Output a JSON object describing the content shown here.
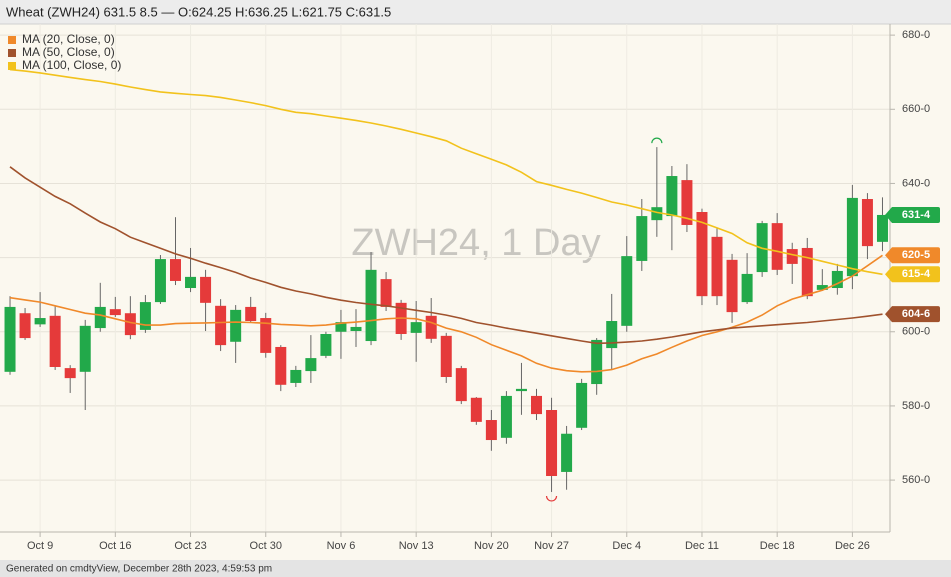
{
  "chart_data": {
    "type": "candlestick",
    "title": "Wheat (ZWH24) 631.5 8.5 — O:624.25 H:636.25 L:621.75 C:631.5",
    "watermark": "ZWH24, 1 Day",
    "footer": "Generated on cmdtyView, December 28th 2023, 4:59:53 pm",
    "categories": [
      null,
      null,
      "Oct 9",
      null,
      null,
      null,
      null,
      "Oct 16",
      null,
      null,
      null,
      null,
      "Oct 23",
      null,
      null,
      null,
      null,
      "Oct 30",
      null,
      null,
      null,
      null,
      "Nov 6",
      null,
      null,
      null,
      null,
      "Nov 13",
      null,
      null,
      null,
      null,
      "Nov 20",
      null,
      null,
      null,
      "Nov 27",
      null,
      null,
      null,
      null,
      "Dec 4",
      null,
      null,
      null,
      null,
      "Dec 11",
      null,
      null,
      null,
      null,
      "Dec 18",
      null,
      null,
      null,
      null,
      "Dec 26",
      null,
      null
    ],
    "open": [
      589.2,
      605,
      602,
      604.3,
      590.2,
      589.2,
      601,
      606.1,
      605,
      600.5,
      608,
      619.6,
      611.8,
      614.8,
      607,
      597.3,
      606.7,
      603.7,
      595.9,
      586.2,
      589.4,
      593.5,
      600,
      600.2,
      597.5,
      614.2,
      607.8,
      599.7,
      604.3,
      598.9,
      590.2,
      582.2,
      576.2,
      571.4,
      584,
      582.7,
      578.9,
      562.2,
      574.1,
      585.9,
      595.6,
      601.6,
      619.1,
      630.1,
      631.2,
      640.9,
      632.3,
      625.6,
      619.4,
      608,
      616.1,
      629.3,
      622.3,
      622.6,
      611.3,
      611.8,
      615,
      635.8,
      624.25
    ],
    "high": [
      609.6,
      606.4,
      610.7,
      607,
      591,
      603.2,
      613.2,
      609.4,
      609.6,
      609.9,
      620.7,
      630.9,
      622.6,
      616.7,
      608.8,
      607.2,
      609.4,
      605.1,
      596.4,
      590.8,
      599.1,
      600,
      605.9,
      606.1,
      621.5,
      616.1,
      608.6,
      608.3,
      609.1,
      599.7,
      590.8,
      582.4,
      578.9,
      584,
      591.6,
      584.6,
      582.2,
      574.6,
      587.3,
      598.3,
      610.2,
      625.8,
      635.8,
      649.8,
      644.7,
      645.2,
      633.2,
      628,
      621,
      621.2,
      629.9,
      632,
      624,
      625.3,
      616.9,
      618.3,
      639.6,
      637.4,
      636.25
    ],
    "low": [
      588.4,
      597.8,
      601.3,
      589.7,
      583.5,
      578.9,
      600,
      604,
      598,
      599.7,
      607.5,
      612.6,
      610.7,
      600.2,
      594.8,
      591.6,
      602.4,
      593,
      584,
      585.1,
      586.2,
      592.9,
      592.7,
      595.9,
      596.4,
      605.6,
      597.8,
      591.9,
      597,
      586.2,
      580.5,
      574.9,
      567.9,
      569.8,
      577.6,
      576.2,
      556.8,
      557.4,
      573.5,
      583,
      589.7,
      600,
      616.4,
      625.6,
      622,
      626.9,
      607.2,
      607.2,
      602.4,
      607.5,
      614.8,
      615.3,
      612.9,
      608.8,
      611,
      610,
      611.5,
      619.6,
      621.75
    ],
    "close": [
      606.7,
      598.3,
      603.7,
      590.5,
      587.5,
      601.6,
      606.7,
      604.5,
      599.1,
      608,
      619.6,
      613.7,
      614.8,
      607.8,
      596.4,
      605.9,
      602.9,
      594.3,
      585.7,
      589.7,
      592.9,
      599.4,
      602.6,
      601.3,
      616.7,
      606.7,
      599.4,
      602.6,
      598.1,
      587.8,
      581.3,
      575.7,
      570.8,
      582.7,
      584.6,
      577.8,
      561.1,
      572.5,
      586.2,
      597.8,
      602.9,
      620.4,
      631.2,
      633.6,
      642,
      628.8,
      609.6,
      609.6,
      605.3,
      615.6,
      629.3,
      616.7,
      618.3,
      609.6,
      612.6,
      616.4,
      636.1,
      623.1,
      631.5
    ],
    "up_color": "#22a94a",
    "down_color": "#e53a3a",
    "last_label": {
      "value": 631.5,
      "label": "631-4"
    },
    "series": [
      {
        "name": "MA (20, Close, 0)",
        "color": "#f0892a",
        "last_label": {
          "value": 620.625,
          "label": "620-5"
        },
        "values": [
          609.2,
          608.6,
          608,
          607,
          606,
          605,
          604.5,
          603.5,
          602.5,
          601.8,
          601.8,
          602.2,
          602.3,
          602.4,
          602.5,
          602.6,
          602.5,
          602.3,
          602,
          601.8,
          601.6,
          601.8,
          602.3,
          602.6,
          603,
          603.5,
          603.7,
          603.5,
          602.5,
          601,
          600,
          598.5,
          596.5,
          595,
          593.5,
          591.5,
          590.2,
          589.5,
          589.2,
          589.3,
          589.8,
          591,
          592.7,
          594,
          595.8,
          597.5,
          599,
          600,
          601.2,
          602.6,
          604.5,
          607,
          608.8,
          610,
          611.2,
          613,
          615,
          617.8,
          620.625
        ]
      },
      {
        "name": "MA (50, Close, 0)",
        "color": "#a0522d",
        "last_label": {
          "value": 604.75,
          "label": "604-6"
        },
        "values": [
          644.5,
          641.5,
          639,
          636.5,
          634.5,
          632,
          629.6,
          627.8,
          625.5,
          624,
          622.5,
          621,
          619.8,
          618.5,
          617.3,
          616,
          614.5,
          613.3,
          612,
          611,
          610.2,
          609.3,
          608.5,
          607.9,
          607.4,
          607,
          606.4,
          605.8,
          605.2,
          604.5,
          603.6,
          602.5,
          601.8,
          601,
          600.3,
          599.6,
          598.9,
          598.2,
          597.5,
          596.9,
          597,
          597.2,
          597.5,
          598,
          598.6,
          599.3,
          600,
          600.5,
          601,
          601.3,
          601.6,
          601.9,
          602.2,
          602.5,
          602.9,
          603.3,
          603.7,
          604.2,
          604.75
        ]
      },
      {
        "name": "MA (100, Close, 0)",
        "color": "#f2c21c",
        "last_label": {
          "value": 615.5,
          "label": "615-4"
        },
        "values": [
          670.7,
          670.3,
          669.8,
          669.2,
          668.6,
          668,
          667.5,
          666.8,
          666,
          665.3,
          664.7,
          664.3,
          664,
          663.7,
          663.2,
          662.5,
          661.8,
          661,
          660,
          659.2,
          658.8,
          658.2,
          657.6,
          657,
          656.3,
          655.5,
          654.6,
          653.6,
          652.6,
          651.5,
          649.5,
          648,
          646.5,
          645,
          643,
          640.5,
          639.5,
          638.4,
          637.4,
          636.2,
          635,
          634.2,
          633.2,
          632.2,
          631.5,
          630.6,
          629.5,
          628,
          626.5,
          624,
          622.5,
          621.7,
          620.8,
          620,
          619,
          618,
          617,
          616.2,
          615.5
        ]
      }
    ],
    "ylim": [
      546,
      683
    ],
    "yticks": [
      {
        "value": 560,
        "label": "560-0"
      },
      {
        "value": 580,
        "label": "580-0"
      },
      {
        "value": 600,
        "label": "600-0"
      },
      {
        "value": 620,
        "label": "620-0"
      },
      {
        "value": 640,
        "label": "640-0"
      },
      {
        "value": 660,
        "label": "660-0"
      },
      {
        "value": 680,
        "label": "680-0"
      }
    ],
    "grid": true
  }
}
